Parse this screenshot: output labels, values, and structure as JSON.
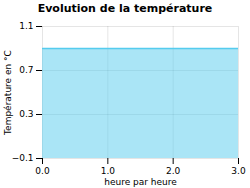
{
  "chart_data": {
    "type": "area",
    "title": "Evolution de la température",
    "xlabel": "heure par heure",
    "ylabel": "Température en °C",
    "x": [
      0,
      3
    ],
    "values": [
      0.9,
      0.9
    ],
    "color": "#55ccee",
    "xlim": [
      0,
      3
    ],
    "ylim": [
      -0.1,
      1.1
    ],
    "xticks": [
      0,
      1,
      2,
      3
    ],
    "yticks": [
      -0.1,
      0.3,
      0.7,
      1.1
    ],
    "grid": true
  }
}
